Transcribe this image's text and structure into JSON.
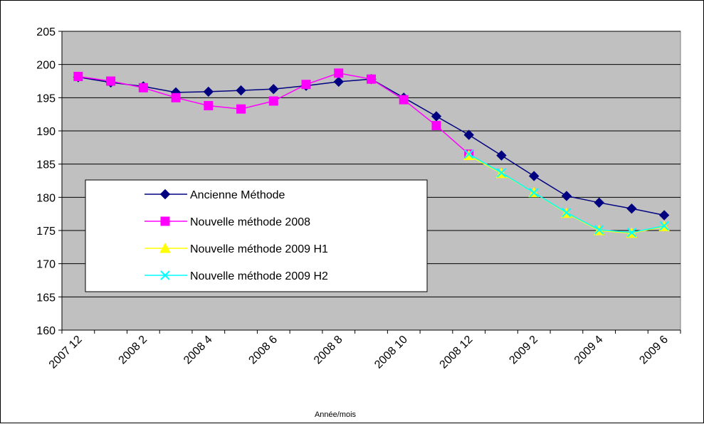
{
  "chart_data": {
    "type": "line",
    "title": "",
    "xlabel": "Année/mois",
    "ylabel": "",
    "ylim": [
      160,
      205
    ],
    "yticks": [
      160,
      165,
      170,
      175,
      180,
      185,
      190,
      195,
      200,
      205
    ],
    "grid": true,
    "plot_background": "#C0C0C0",
    "legend_position": "left-middle",
    "x": [
      "2007 12",
      "2008 1",
      "2008 2",
      "2008 3",
      "2008 4",
      "2008 5",
      "2008 6",
      "2008 7",
      "2008 8",
      "2008 9",
      "2008 10",
      "2008 11",
      "2008 12",
      "2009 1",
      "2009 2",
      "2009 3",
      "2009 4",
      "2009 5",
      "2009 6"
    ],
    "xtick_labels": [
      "2007 12",
      "2008 2",
      "2008 4",
      "2008 6",
      "2008 8",
      "2008 10",
      "2008 12",
      "2009 2",
      "2009 4",
      "2009 6"
    ],
    "series": [
      {
        "name": "Ancienne Méthode",
        "color": "#000080",
        "marker": "diamond",
        "values": [
          198.1,
          197.3,
          196.7,
          195.8,
          195.9,
          196.1,
          196.3,
          196.8,
          197.4,
          197.8,
          195.0,
          192.2,
          189.4,
          186.3,
          183.2,
          180.2,
          179.2,
          178.3,
          177.3
        ]
      },
      {
        "name": "Nouvelle méthode 2008",
        "color": "#FF00FF",
        "marker": "square",
        "values": [
          198.2,
          197.5,
          196.5,
          195.0,
          193.8,
          193.3,
          194.5,
          197.0,
          198.7,
          197.8,
          194.7,
          190.8,
          186.5,
          null,
          null,
          null,
          null,
          null,
          null
        ]
      },
      {
        "name": "Nouvelle méthode 2009 H1",
        "color": "#FFFF00",
        "marker": "triangle",
        "values": [
          null,
          null,
          null,
          null,
          null,
          null,
          null,
          null,
          null,
          null,
          null,
          null,
          186.3,
          183.6,
          180.7,
          177.6,
          175.0,
          174.6,
          175.6
        ]
      },
      {
        "name": "Nouvelle méthode 2009 H2",
        "color": "#00FFFF",
        "marker": "x",
        "values": [
          null,
          null,
          null,
          null,
          null,
          null,
          null,
          null,
          null,
          null,
          null,
          null,
          186.5,
          183.7,
          180.7,
          177.7,
          175.1,
          174.7,
          175.7
        ]
      }
    ]
  }
}
